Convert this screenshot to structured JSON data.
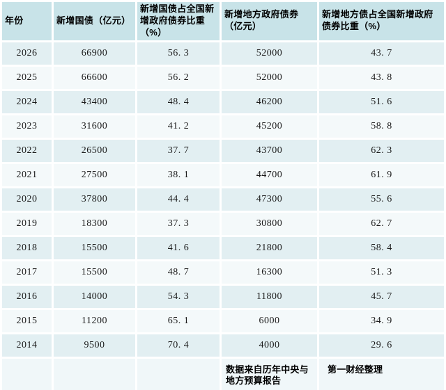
{
  "table": {
    "columns": [
      "年份",
      "新增国债（亿元）",
      "新增国债占全国新增政府债券比重（%）",
      "新增地方政府债券（亿元）",
      "新增地方债占全国新增政府债券比重（%）"
    ],
    "rows": [
      [
        "2026",
        "66900",
        "56. 3",
        "52000",
        "43. 7"
      ],
      [
        "2025",
        "66600",
        "56. 2",
        "52000",
        "43. 8"
      ],
      [
        "2024",
        "43400",
        "48. 4",
        "46200",
        "51. 6"
      ],
      [
        "2023",
        "31600",
        "41. 2",
        "45200",
        "58. 8"
      ],
      [
        "2022",
        "26500",
        "37. 7",
        "43700",
        "62. 3"
      ],
      [
        "2021",
        "27500",
        "38. 1",
        "44700",
        "61. 9"
      ],
      [
        "2020",
        "37800",
        "44. 4",
        "47300",
        "55. 6"
      ],
      [
        "2019",
        "18300",
        "37. 3",
        "30800",
        "62. 7"
      ],
      [
        "2018",
        "15500",
        "41. 6",
        "21800",
        "58. 4"
      ],
      [
        "2017",
        "15500",
        "48. 7",
        "16300",
        "51. 3"
      ],
      [
        "2016",
        "14000",
        "54. 3",
        "11800",
        "45. 7"
      ],
      [
        "2015",
        "11200",
        "65. 1",
        "6000",
        "34. 9"
      ],
      [
        "2014",
        "9500",
        "70. 4",
        "4000",
        "29. 6"
      ]
    ],
    "footer": {
      "source_note": "数据来自历年中央与地方预算报告",
      "credit": "第一财经整理"
    }
  },
  "colors": {
    "header_bg": "#c8e3e8",
    "row_odd_bg": "#e2eff2",
    "row_even_bg": "#f4f9fa",
    "footer_bg": "#f0f7f9",
    "gap": "#ffffff",
    "header_text": "#000000",
    "body_text": "#1b1b1b"
  },
  "chart_data": {
    "type": "table",
    "title": "",
    "columns": [
      "年份",
      "新增国债（亿元）",
      "新增国债占全国新增政府债券比重（%）",
      "新增地方政府债券（亿元）",
      "新增地方债占全国新增政府债券比重（%）"
    ],
    "rows": [
      [
        2026,
        66900,
        56.3,
        52000,
        43.7
      ],
      [
        2025,
        66600,
        56.2,
        52000,
        43.8
      ],
      [
        2024,
        43400,
        48.4,
        46200,
        51.6
      ],
      [
        2023,
        31600,
        41.2,
        45200,
        58.8
      ],
      [
        2022,
        26500,
        37.7,
        43700,
        62.3
      ],
      [
        2021,
        27500,
        38.1,
        44700,
        61.9
      ],
      [
        2020,
        37800,
        44.4,
        47300,
        55.6
      ],
      [
        2019,
        18300,
        37.3,
        30800,
        62.7
      ],
      [
        2018,
        15500,
        41.6,
        21800,
        58.4
      ],
      [
        2017,
        15500,
        48.7,
        16300,
        51.3
      ],
      [
        2016,
        14000,
        54.3,
        11800,
        45.7
      ],
      [
        2015,
        11200,
        65.1,
        6000,
        34.9
      ],
      [
        2014,
        9500,
        70.4,
        4000,
        29.6
      ]
    ],
    "source_note": "数据来自历年中央与地方预算报告",
    "credit": "第一财经整理"
  }
}
